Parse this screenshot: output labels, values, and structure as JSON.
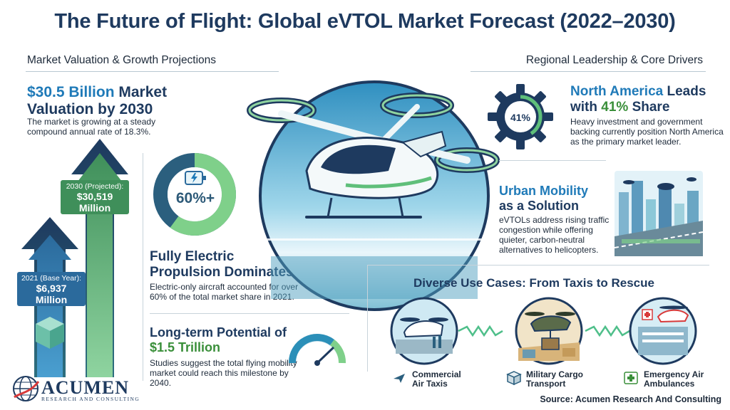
{
  "title": "The Future of Flight: Global eVTOL Market Forecast (2022–2030)",
  "sections": {
    "left": "Market Valuation & Growth Projections",
    "right": "Regional Leadership & Core Drivers"
  },
  "valuation": {
    "headline_accent": "$30.5 Billion",
    "headline_rest1": " Market",
    "headline_rest2": "Valuation by 2030",
    "body": "The market is growing at a steady compound annual rate of 18.3%."
  },
  "arrows": {
    "y2030_label": "2030 (Projected):",
    "y2030_value": "$30,519",
    "y2030_unit": "Million",
    "y2021_label": "2021 (Base Year):",
    "y2021_value": "$6,937",
    "y2021_unit": "Million"
  },
  "propulsion": {
    "percent": "60%+",
    "percent_fraction": 0.6,
    "headline1": "Fully Electric",
    "headline2": "Propulsion Dominates",
    "body": "Electric-only aircraft accounted for over 60% of the total market share in 2021."
  },
  "potential": {
    "headline1": "Long-term Potential of",
    "headline_accent": "$1.5 Trillion",
    "body": "Studies suggest the total flying mobility market could reach this milestone by 2040."
  },
  "region": {
    "gear_text": "41%",
    "headline_accent1": "North America",
    "headline_rest1": " Leads",
    "headline_rest2": "with ",
    "headline_accent2": "41%",
    "headline_rest3": " Share",
    "body": "Heavy investment and government backing currently position North America as the primary market leader."
  },
  "urban": {
    "headline_accent": "Urban Mobility",
    "headline_rest": "as a Solution",
    "body": "eVTOLs address rising traffic congestion while offering quieter, carbon-neutral alternatives to helicopters."
  },
  "usecases": {
    "heading": "Diverse Use Cases: From Taxis to Rescue",
    "items": [
      {
        "line1": "Commercial",
        "line2": "Air Taxis",
        "icon": "airplane-icon"
      },
      {
        "line1": "Military Cargo",
        "line2": "Transport",
        "icon": "cargo-box-icon"
      },
      {
        "line1": "Emergency Air",
        "line2": "Ambulances",
        "icon": "medical-cross-icon"
      }
    ]
  },
  "source": "Source: Acumen Research And Consulting",
  "logo": {
    "word": "ACUMEN",
    "sub": "RESEARCH AND CONSULTING"
  },
  "colors": {
    "navy": "#1e3a5f",
    "blue": "#1f7ab8",
    "green": "#3a8f3a",
    "teal": "#2d6f7e"
  }
}
